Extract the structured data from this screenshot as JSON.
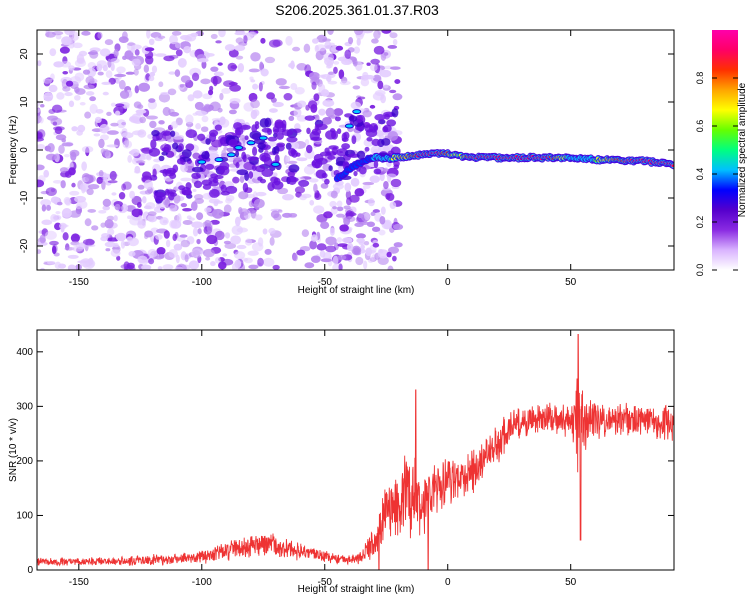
{
  "title": "S206.2025.361.01.37.R03",
  "chart_data": [
    {
      "type": "heatmap",
      "xlabel": "Height of straight line (km)",
      "ylabel": "Frequency (Hz)",
      "xlim": [
        -167,
        92
      ],
      "ylim": [
        -25,
        25
      ],
      "x_ticks": [
        -150,
        -100,
        -50,
        0,
        50
      ],
      "y_ticks": [
        -20,
        -10,
        0,
        10,
        20
      ],
      "colorbar": {
        "label": "Normalized spectral amplitude",
        "range": [
          0,
          1
        ],
        "ticks": [
          "0.0",
          "0.2",
          "0.4",
          "0.6",
          "0.8"
        ],
        "colors": [
          "#ffffff",
          "#d9b3ff",
          "#8a2be2",
          "#5500cc",
          "#0000ff",
          "#00c0ff",
          "#00ff80",
          "#66ff00",
          "#ffff00",
          "#ffa500",
          "#ff3000",
          "#ff0066",
          "#ff00aa"
        ]
      },
      "ridge": {
        "x": [
          -45,
          -40,
          -35,
          -30,
          -25,
          -20,
          -15,
          -10,
          -5,
          0,
          5,
          10,
          20,
          30,
          40,
          50,
          60,
          70,
          80,
          90
        ],
        "y": [
          -6,
          -4,
          -2.5,
          -1.5,
          -1.8,
          -1.5,
          -1.2,
          -1.0,
          -0.6,
          -0.8,
          -1.2,
          -1.6,
          -1.6,
          -1.6,
          -1.6,
          -1.7,
          -2.0,
          -2.2,
          -2.3,
          -3.0
        ],
        "amplitude": [
          0.3,
          0.35,
          0.4,
          0.5,
          0.55,
          0.7,
          0.8,
          0.95,
          0.95,
          0.8,
          0.6,
          0.95,
          0.95,
          0.95,
          0.95,
          0.55,
          0.6,
          0.85,
          0.95,
          0.95
        ]
      }
    },
    {
      "type": "line",
      "xlabel": "Height of straight line (km)",
      "ylabel": "SNR (10 * v/v)",
      "xlim": [
        -167,
        92
      ],
      "ylim": [
        0,
        440
      ],
      "x_ticks": [
        -150,
        -100,
        -50,
        0,
        50
      ],
      "y_ticks": [
        0,
        100,
        200,
        300,
        400
      ],
      "series": [
        {
          "name": "SNR",
          "color": "#ee3333",
          "x": [
            -167,
            -150,
            -130,
            -110,
            -100,
            -90,
            -80,
            -75,
            -65,
            -55,
            -50,
            -45,
            -40,
            -35,
            -30,
            -25,
            -20,
            -15,
            -10,
            -5,
            0,
            5,
            10,
            15,
            20,
            25,
            30,
            40,
            50,
            53,
            55,
            60,
            70,
            80,
            92
          ],
          "center": [
            15,
            15,
            17,
            20,
            25,
            35,
            45,
            50,
            38,
            30,
            25,
            20,
            18,
            25,
            50,
            110,
            120,
            150,
            120,
            145,
            160,
            170,
            180,
            205,
            230,
            260,
            270,
            280,
            270,
            265,
            270,
            275,
            275,
            275,
            270
          ],
          "spread": [
            8,
            8,
            10,
            12,
            15,
            20,
            25,
            30,
            20,
            15,
            12,
            10,
            10,
            15,
            35,
            60,
            80,
            100,
            70,
            55,
            50,
            45,
            45,
            40,
            40,
            40,
            35,
            30,
            35,
            120,
            60,
            40,
            35,
            35,
            40
          ],
          "peaks": [
            [
              53,
              432
            ],
            [
              -13,
              330
            ],
            [
              54,
              55
            ],
            [
              -8,
              0
            ],
            [
              -28,
              0
            ]
          ]
        }
      ]
    }
  ]
}
